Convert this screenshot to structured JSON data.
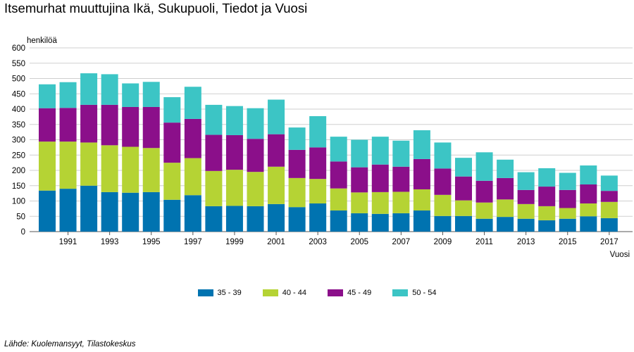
{
  "header": {
    "title": "Itsemurhat muuttujina Ikä, Sukupuoli, Tiedot ja Vuosi"
  },
  "footer": {
    "source": "Lähde: Kuolemansyyt, Tilastokeskus"
  },
  "chart_data": {
    "type": "bar",
    "stacked": true,
    "title": "Itsemurhat muuttujina Ikä, Sukupuoli, Tiedot ja Vuosi",
    "ylabel": "henkilöä",
    "xlabel": "Vuosi",
    "ylim": [
      0,
      600
    ],
    "yticks": [
      0,
      50,
      100,
      150,
      200,
      250,
      300,
      350,
      400,
      450,
      500,
      550,
      600
    ],
    "grid": true,
    "legend_position": "bottom",
    "categories": [
      "1990",
      "1991",
      "1992",
      "1993",
      "1994",
      "1995",
      "1996",
      "1997",
      "1998",
      "1999",
      "2000",
      "2001",
      "2002",
      "2003",
      "2004",
      "2005",
      "2006",
      "2007",
      "2008",
      "2009",
      "2010",
      "2011",
      "2012",
      "2013",
      "2014",
      "2015",
      "2016",
      "2017"
    ],
    "x_tick_labels": [
      "1991",
      "1993",
      "1995",
      "1997",
      "1999",
      "2001",
      "2003",
      "2005",
      "2007",
      "2009",
      "2011",
      "2013",
      "2015",
      "2017"
    ],
    "series": [
      {
        "name": "35 - 39",
        "color": "#0073b0",
        "values": [
          134,
          140,
          150,
          129,
          127,
          129,
          104,
          119,
          83,
          84,
          83,
          90,
          80,
          92,
          69,
          60,
          58,
          60,
          69,
          51,
          51,
          42,
          48,
          42,
          37,
          42,
          50,
          44
        ]
      },
      {
        "name": "40 - 44",
        "color": "#b5d334",
        "values": [
          160,
          154,
          141,
          153,
          150,
          144,
          121,
          121,
          115,
          118,
          112,
          122,
          95,
          80,
          72,
          68,
          71,
          70,
          69,
          69,
          51,
          53,
          57,
          48,
          46,
          35,
          42,
          53
        ]
      },
      {
        "name": "45 - 49",
        "color": "#8b0f8a",
        "values": [
          109,
          110,
          123,
          132,
          130,
          134,
          131,
          128,
          118,
          113,
          108,
          106,
          92,
          103,
          88,
          82,
          90,
          82,
          99,
          86,
          78,
          71,
          70,
          46,
          64,
          59,
          62,
          36
        ]
      },
      {
        "name": "50 - 54",
        "color": "#3cc5c5",
        "values": [
          78,
          84,
          103,
          100,
          77,
          82,
          83,
          105,
          98,
          95,
          100,
          113,
          73,
          102,
          81,
          90,
          91,
          85,
          94,
          85,
          61,
          93,
          60,
          58,
          60,
          56,
          62,
          50
        ]
      }
    ]
  }
}
